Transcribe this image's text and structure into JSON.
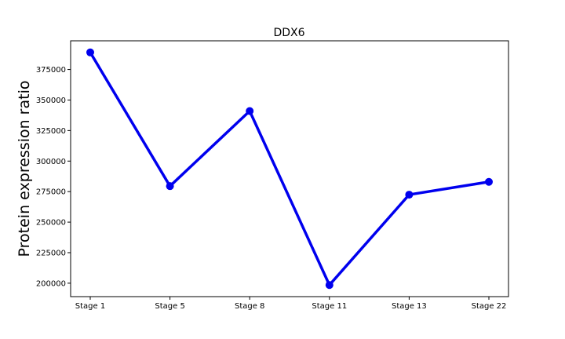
{
  "chart_data": {
    "type": "line",
    "title": "DDX6",
    "xlabel": "",
    "ylabel": "Protein expression ratio",
    "categories": [
      "Stage 1",
      "Stage 5",
      "Stage 8",
      "Stage 11",
      "Stage 13",
      "Stage 22"
    ],
    "series": [
      {
        "values": [
          389000,
          279500,
          341000,
          198500,
          272500,
          283000
        ],
        "color": "#0000ee"
      }
    ],
    "ylim": [
      189000,
      398500
    ],
    "yticks": [
      200000,
      225000,
      250000,
      275000,
      300000,
      325000,
      350000,
      375000
    ],
    "ytick_labels": [
      "200000",
      "225000",
      "250000",
      "275000",
      "300000",
      "325000",
      "350000",
      "375000"
    ],
    "grid": false,
    "legend": false
  }
}
